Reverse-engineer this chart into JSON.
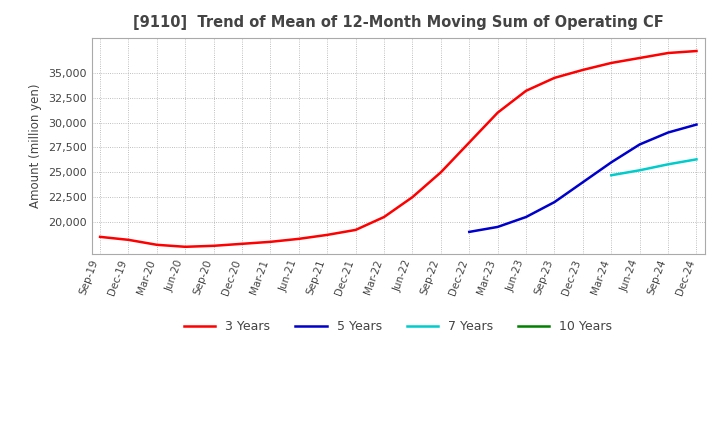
{
  "title": "[9110]  Trend of Mean of 12-Month Moving Sum of Operating CF",
  "ylabel": "Amount (million yen)",
  "background_color": "#ffffff",
  "grid_color": "#aaaaaa",
  "title_color": "#444444",
  "x_labels": [
    "Sep-19",
    "Dec-19",
    "Mar-20",
    "Jun-20",
    "Sep-20",
    "Dec-20",
    "Mar-21",
    "Jun-21",
    "Sep-21",
    "Dec-21",
    "Mar-22",
    "Jun-22",
    "Sep-22",
    "Dec-22",
    "Mar-23",
    "Jun-23",
    "Sep-23",
    "Dec-23",
    "Mar-24",
    "Jun-24",
    "Sep-24",
    "Dec-24"
  ],
  "ylim": [
    16800,
    38500
  ],
  "yticks": [
    20000,
    22500,
    25000,
    27500,
    30000,
    32500,
    35000
  ],
  "line_3y": [
    18500,
    18200,
    17700,
    17500,
    17600,
    17800,
    18000,
    18300,
    18700,
    19200,
    20500,
    22500,
    25000,
    28000,
    31000,
    33200,
    34500,
    35300,
    36000,
    36500,
    37000,
    37200
  ],
  "line_5y": [
    null,
    null,
    null,
    null,
    null,
    null,
    null,
    null,
    null,
    null,
    null,
    null,
    null,
    19000,
    19500,
    20500,
    22000,
    24000,
    26000,
    27800,
    29000,
    29800
  ],
  "line_7y": [
    null,
    null,
    null,
    null,
    null,
    null,
    null,
    null,
    null,
    null,
    null,
    null,
    null,
    null,
    null,
    null,
    null,
    null,
    24700,
    25200,
    25800,
    26300
  ],
  "line_10y": [
    null,
    null,
    null,
    null,
    null,
    null,
    null,
    null,
    null,
    null,
    null,
    null,
    null,
    null,
    null,
    null,
    null,
    null,
    null,
    null,
    null,
    null
  ],
  "color_3y": "#ff0000",
  "color_5y": "#0000cc",
  "color_7y": "#00cccc",
  "color_10y": "#008000",
  "legend_labels": [
    "3 Years",
    "5 Years",
    "7 Years",
    "10 Years"
  ]
}
